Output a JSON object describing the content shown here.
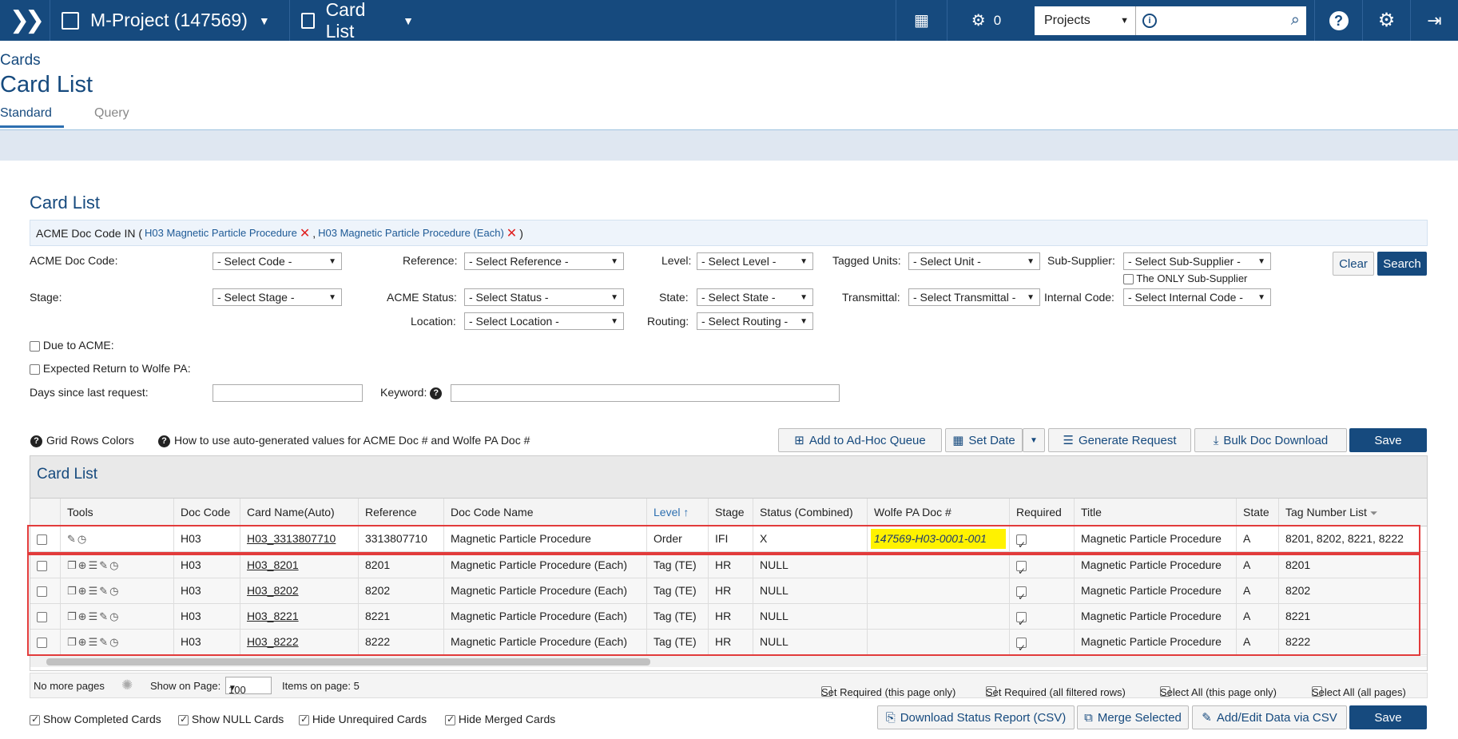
{
  "topbar": {
    "project": "M-Project (147569)",
    "page": "Card List",
    "queue_count": "0",
    "scope_select": "Projects"
  },
  "header": {
    "section": "Cards",
    "title": "Card List"
  },
  "tabs": [
    {
      "label": "Standard"
    },
    {
      "label": "Query"
    }
  ],
  "panel": {
    "title": "Card List",
    "filter_prefix": "ACME Doc Code IN (",
    "filter_tokens": [
      "H03 Magnetic Particle Procedure",
      "H03 Magnetic Particle Procedure (Each)"
    ],
    "filter_sep": ",",
    "filter_suffix": ")"
  },
  "filters": {
    "acme_doc_code": {
      "label": "ACME Doc Code:",
      "value": "- Select Code -"
    },
    "reference": {
      "label": "Reference:",
      "value": "- Select Reference -"
    },
    "level": {
      "label": "Level:",
      "value": "- Select Level -"
    },
    "tagged_units": {
      "label": "Tagged Units:",
      "value": "- Select Unit -"
    },
    "sub_supplier": {
      "label": "Sub-Supplier:",
      "value": "- Select Sub-Supplier -"
    },
    "only_sub_supplier": "The ONLY Sub-Supplier",
    "stage": {
      "label": "Stage:",
      "value": "- Select Stage -"
    },
    "acme_status": {
      "label": "ACME Status:",
      "value": "- Select Status -"
    },
    "state": {
      "label": "State:",
      "value": "- Select State -"
    },
    "transmittal": {
      "label": "Transmittal:",
      "value": "- Select Transmittal -"
    },
    "internal_code": {
      "label": "Internal Code:",
      "value": "- Select Internal Code -"
    },
    "location": {
      "label": "Location:",
      "value": "- Select Location -"
    },
    "routing": {
      "label": "Routing:",
      "value": "- Select Routing -"
    },
    "due_to_acme": "Due to ACME:",
    "expected_return": "Expected Return to Wolfe PA:",
    "days_since": "Days since last request:",
    "keyword": "Keyword:",
    "clear": "Clear",
    "search": "Search"
  },
  "toolbar": {
    "grid_rows_colors": "Grid Rows Colors",
    "how_to": "How to use auto-generated values for ACME Doc # and Wolfe PA Doc #",
    "add_adhoc": "Add to Ad-Hoc Queue",
    "set_date": "Set Date",
    "generate_request": "Generate Request",
    "bulk_download": "Bulk Doc Download",
    "save": "Save"
  },
  "grid": {
    "title": "Card List",
    "columns": [
      "Tools",
      "Doc Code",
      "Card Name(Auto)",
      "Reference",
      "Doc Code Name",
      "Level ↑",
      "Stage",
      "Status (Combined)",
      "Wolfe PA Doc #",
      "Required",
      "Title",
      "State",
      "Tag Number List"
    ],
    "rows": [
      {
        "doc_code": "H03",
        "card_name": "H03_3313807710",
        "reference": "3313807710",
        "doc_code_name": "Magnetic Particle Procedure",
        "level": "Order",
        "stage": "IFI",
        "status": "X",
        "wolfe_doc": "147569-H03-0001-001",
        "title": "Magnetic Particle Procedure",
        "state": "A",
        "tags": "8201, 8202, 8221, 8222"
      },
      {
        "doc_code": "H03",
        "card_name": "H03_8201",
        "reference": "8201",
        "doc_code_name": "Magnetic Particle Procedure (Each)",
        "level": "Tag (TE)",
        "stage": "HR",
        "status": "NULL",
        "wolfe_doc": "",
        "title": "Magnetic Particle Procedure",
        "state": "A",
        "tags": "8201"
      },
      {
        "doc_code": "H03",
        "card_name": "H03_8202",
        "reference": "8202",
        "doc_code_name": "Magnetic Particle Procedure (Each)",
        "level": "Tag (TE)",
        "stage": "HR",
        "status": "NULL",
        "wolfe_doc": "",
        "title": "Magnetic Particle Procedure",
        "state": "A",
        "tags": "8202"
      },
      {
        "doc_code": "H03",
        "card_name": "H03_8221",
        "reference": "8221",
        "doc_code_name": "Magnetic Particle Procedure (Each)",
        "level": "Tag (TE)",
        "stage": "HR",
        "status": "NULL",
        "wolfe_doc": "",
        "title": "Magnetic Particle Procedure",
        "state": "A",
        "tags": "8221"
      },
      {
        "doc_code": "H03",
        "card_name": "H03_8222",
        "reference": "8222",
        "doc_code_name": "Magnetic Particle Procedure (Each)",
        "level": "Tag (TE)",
        "stage": "HR",
        "status": "NULL",
        "wolfe_doc": "",
        "title": "Magnetic Particle Procedure",
        "state": "A",
        "tags": "8222"
      }
    ]
  },
  "pager": {
    "no_more": "No more pages",
    "show_on_page": "Show on Page:",
    "page_size": "100",
    "items_on_page": "Items on page: 5",
    "set_required_page": "Set Required (this page only)",
    "set_required_all": "Set Required (all filtered rows)",
    "select_all_page": "Select All (this page only)",
    "select_all_pages": "Select All (all pages)"
  },
  "bottom": {
    "show_completed": "Show Completed Cards",
    "show_null": "Show NULL Cards",
    "hide_unrequired": "Hide Unrequired Cards",
    "hide_merged": "Hide Merged Cards",
    "download_status": "Download Status Report (CSV)",
    "merge_selected": "Merge Selected",
    "add_edit_csv": "Add/Edit Data via CSV",
    "save": "Save"
  }
}
